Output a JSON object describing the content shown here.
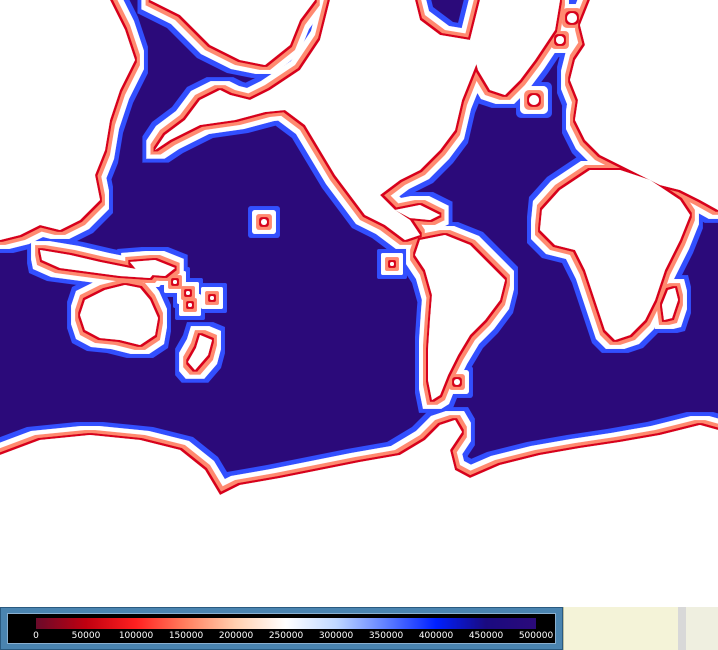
{
  "map": {
    "projection": "mercator",
    "colors": {
      "ocean": "#2b0a7a",
      "land": "#ffffff",
      "coast_band": [
        "#7a0020",
        "#d00010",
        "#ff3030",
        "#ff9a70",
        "#ffffff",
        "#a8c8ff",
        "#2040ff"
      ]
    }
  },
  "legend": {
    "min": 0,
    "max": 500000,
    "ticks": [
      "0",
      "50000",
      "100000",
      "150000",
      "200000",
      "250000",
      "300000",
      "350000",
      "400000",
      "450000",
      "500000"
    ],
    "ramp_colors": [
      "#6a0a2a",
      "#c00010",
      "#ff2020",
      "#ff8060",
      "#ffd0b0",
      "#ffffff",
      "#c0d8ff",
      "#6080ff",
      "#0020ff",
      "#1a0a80",
      "#2b0a7a"
    ]
  }
}
